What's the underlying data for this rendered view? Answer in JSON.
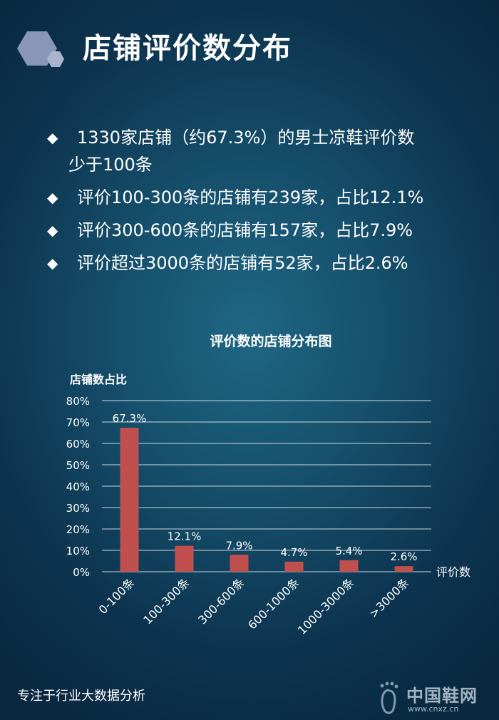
{
  "header": {
    "title": "店铺评价数分布",
    "logo_icon": "hexagon-cluster-icon"
  },
  "bullets": [
    {
      "text": "1330家店铺（约67.3%）的男士凉鞋评价数",
      "cont": "少于100条"
    },
    {
      "text": "评价100-300条的店铺有239家，占比12.1%"
    },
    {
      "text": "评价300-600条的店铺有157家，占比7.9%"
    },
    {
      "text": "评价超过3000条的店铺有52家，占比2.6%"
    }
  ],
  "bullet_marker": "◆",
  "chart_data": {
    "type": "bar",
    "title": "评价数的店铺分布图",
    "ylabel": "店铺数占比",
    "xlabel": "评价数",
    "categories": [
      "0-100条",
      "100-300条",
      "300-600条",
      "600-1000条",
      "1000-3000条",
      ">3000条"
    ],
    "values": [
      67.3,
      12.1,
      7.9,
      4.7,
      5.4,
      2.6
    ],
    "data_labels": [
      "67.3%",
      "12.1%",
      "7.9%",
      "4.7%",
      "5.4%",
      "2.6%"
    ],
    "ylim": [
      0,
      80
    ],
    "yticks": [
      0,
      10,
      20,
      30,
      40,
      50,
      60,
      70,
      80
    ],
    "ytick_labels": [
      "0%",
      "10%",
      "20%",
      "30%",
      "40%",
      "50%",
      "60%",
      "70%",
      "80%"
    ],
    "grid": true,
    "bar_color": "#c0504d"
  },
  "footer": {
    "text": "专注于行业大数据分析"
  },
  "watermark": {
    "name": "中国鞋网",
    "url": "www.cnxz.cn",
    "icon": "footprint-icon"
  }
}
